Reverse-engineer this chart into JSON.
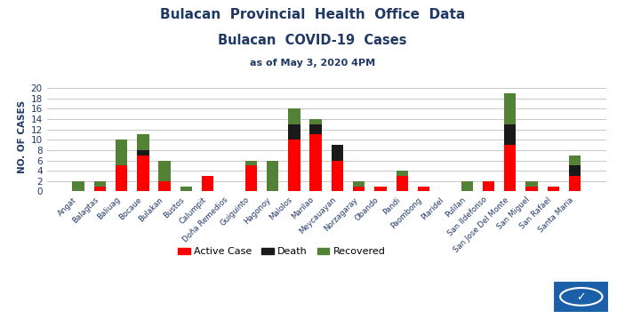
{
  "title1": "Bulacan  Provincial  Health  Office  Data",
  "title2": "Bulacan  COVID-19  Cases",
  "subtitle": "as of May 3, 2020 4PM",
  "ylabel": "NO. OF CASES",
  "categories": [
    "Angat",
    "Balagtas",
    "Baliuag",
    "Bocaue",
    "Bulakan",
    "Bustos",
    "Calumpit",
    "Doña Remedios",
    "Guiguinto",
    "Hagonoy",
    "Malolos",
    "Marilao",
    "Meycauayan",
    "Norzagaray",
    "Obando",
    "Pandi",
    "Paombong",
    "Plaridel",
    "Pulilan",
    "San Ildefonso",
    "San Jose Del Monte",
    "San Miguel",
    "San Rafael",
    "Santa Maria"
  ],
  "active": [
    0,
    1,
    5,
    7,
    2,
    0,
    3,
    0,
    5,
    0,
    10,
    11,
    6,
    1,
    1,
    3,
    1,
    0,
    0,
    2,
    9,
    1,
    1,
    3
  ],
  "death": [
    0,
    0,
    0,
    1,
    0,
    0,
    0,
    0,
    0,
    0,
    3,
    2,
    3,
    0,
    0,
    0,
    0,
    0,
    0,
    0,
    4,
    0,
    0,
    2
  ],
  "recovered": [
    2,
    1,
    5,
    3,
    4,
    1,
    0,
    0,
    1,
    6,
    3,
    1,
    0,
    1,
    0,
    1,
    0,
    0,
    2,
    0,
    6,
    1,
    0,
    2
  ],
  "active_color": "#ff0000",
  "death_color": "#1a1a1a",
  "recovered_color": "#538135",
  "bg_color": "#ffffff",
  "grid_color": "#c8c8c8",
  "title_color": "#1f3864",
  "subtitle_color": "#1f3864",
  "ylim": [
    0,
    21
  ],
  "yticks": [
    0,
    2,
    4,
    6,
    8,
    10,
    12,
    14,
    16,
    18,
    20
  ]
}
